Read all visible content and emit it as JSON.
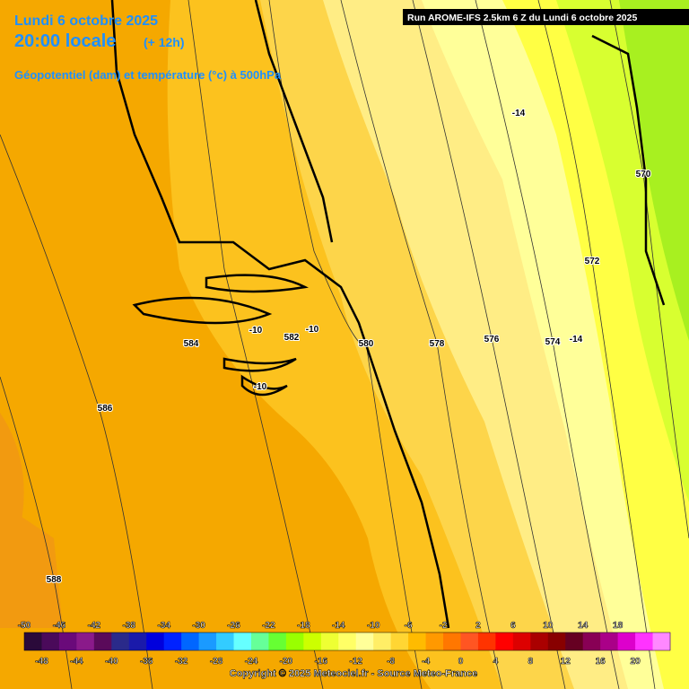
{
  "header": {
    "date": "Lundi 6 octobre 2025",
    "time": "20:00 locale",
    "lead": "(+ 12h)",
    "subtitle": "Géopotentiel (dam) et température (°c) à 500hPa",
    "run": "Run AROME-IFS 2.5km 6 Z du Lundi 6 octobre 2025"
  },
  "contour_labels": [
    "586",
    "588",
    "584",
    "582",
    "580",
    "578",
    "576",
    "574",
    "572",
    "570",
    "-10",
    "-10",
    "-10",
    "-14",
    "-14"
  ],
  "colorbar": {
    "top_labels": [
      -50,
      -46,
      -42,
      -38,
      -34,
      -30,
      -26,
      -22,
      -18,
      -14,
      -10,
      -6,
      -2,
      2,
      6,
      10,
      14,
      18
    ],
    "bottom_labels": [
      -48,
      -44,
      -40,
      -36,
      -32,
      -28,
      -24,
      -20,
      -16,
      -12,
      -8,
      -4,
      0,
      4,
      8,
      12,
      16,
      20
    ],
    "colors": [
      "#2a0a3a",
      "#4a0a5a",
      "#6a0a7a",
      "#8a1a8a",
      "#5a0a5a",
      "#2a2a8a",
      "#1a1aaa",
      "#0000dd",
      "#0022ff",
      "#0066ff",
      "#1a9aff",
      "#33ccff",
      "#66ffff",
      "#66ff99",
      "#66ff33",
      "#99ff00",
      "#ccff00",
      "#eeff33",
      "#ffff66",
      "#ffff99",
      "#ffee66",
      "#ffd633",
      "#ffbb00",
      "#ff9900",
      "#ff7700",
      "#ff5522",
      "#ff3300",
      "#ff0000",
      "#dd0000",
      "#aa0000",
      "#880000",
      "#660022",
      "#880055",
      "#aa0088",
      "#dd00cc",
      "#ff33ff",
      "#ff88ff"
    ]
  },
  "footer": {
    "copyright": "Copyright © 2025 Meteociel.fr - Source Meteo-France"
  }
}
